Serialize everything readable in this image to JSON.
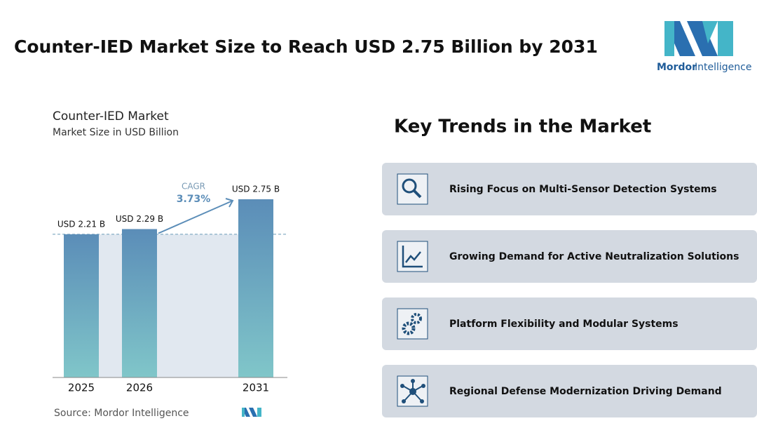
{
  "header": {
    "title": "Counter-IED Market Size to Reach USD 2.75 Billion by 2031"
  },
  "logo": {
    "brand": "Mordor",
    "suffix": "Intelligence"
  },
  "chart_data": {
    "type": "bar",
    "title": "Counter-IED Market",
    "subtitle": "Market Size in USD Billion",
    "categories": [
      "2025",
      "2026",
      null,
      "2031"
    ],
    "values": [
      2.21,
      2.29,
      null,
      2.75
    ],
    "value_labels": [
      "USD 2.21 B",
      "USD 2.29 B",
      null,
      "USD 2.75 B"
    ],
    "color": [
      "#5b8db8",
      "#80c6c9"
    ],
    "annotation": {
      "label": "CAGR",
      "value": "3.73%"
    },
    "source": "Source: Mordor Intelligence"
  },
  "trends": {
    "title": "Key Trends in the Market",
    "items": [
      "Rising Focus on Multi-Sensor Detection Systems",
      "Growing Demand for Active Neutralization Solutions",
      "Platform Flexibility and Modular Systems",
      "Regional Defense Modernization Driving Demand"
    ]
  }
}
